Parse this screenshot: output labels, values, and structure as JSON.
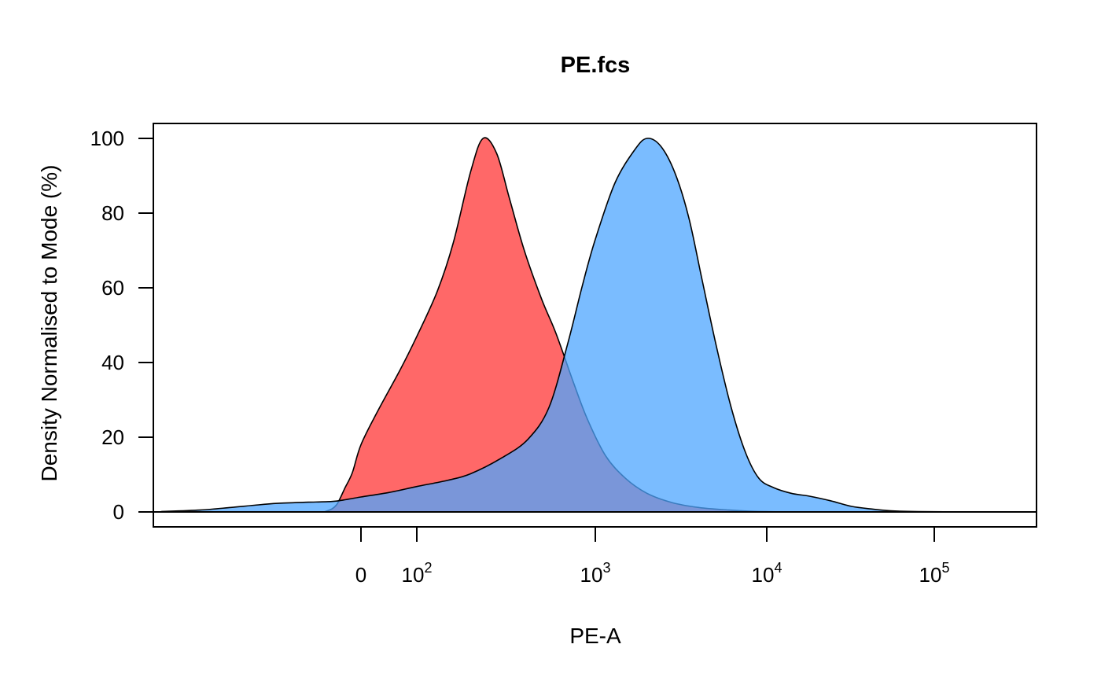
{
  "chart_data": {
    "type": "area",
    "title": "PE.fcs",
    "xlabel": "PE-A",
    "ylabel": "Density Normalised to Mode (%)",
    "x_scale": "biexponential (logicle)",
    "ylim": [
      -4.2,
      100
    ],
    "xlim": [
      -370,
      262000
    ],
    "grid": false,
    "legend": "none",
    "x_ticks": [
      {
        "value": 0,
        "base": "0",
        "exp": ""
      },
      {
        "value": 100,
        "base": "10",
        "exp": "2"
      },
      {
        "value": 1000,
        "base": "10",
        "exp": "3"
      },
      {
        "value": 10000,
        "base": "10",
        "exp": "4"
      },
      {
        "value": 100000,
        "base": "10",
        "exp": "5"
      }
    ],
    "y_ticks": [
      0,
      20,
      40,
      60,
      80,
      100
    ],
    "series": [
      {
        "color": "#FF4D4D",
        "opacity": 0.85,
        "x": [
          -160,
          -120,
          -95,
          -75,
          -55,
          -30,
          0,
          30,
          70,
          100,
          130,
          160,
          200,
          235,
          280,
          330,
          400,
          500,
          600,
          750,
          900,
          1150,
          1500,
          2000,
          2800,
          4000,
          6000,
          8000,
          12000,
          20000,
          50000
        ],
        "y": [
          0,
          0.8,
          2,
          4,
          6.5,
          10.5,
          18,
          27,
          38,
          47,
          59,
          72,
          91,
          100,
          96,
          84,
          70,
          57,
          48,
          35,
          25,
          15,
          9,
          5,
          2.5,
          1.2,
          0.5,
          0.2,
          0.05,
          0,
          0
        ]
      },
      {
        "color": "#4DA6FF",
        "opacity": 0.75,
        "x": [
          -370,
          -320,
          -280,
          -250,
          -220,
          -180,
          -120,
          -60,
          0,
          50,
          100,
          150,
          200,
          300,
          420,
          550,
          700,
          850,
          1000,
          1300,
          1700,
          2000,
          2400,
          2900,
          3500,
          4200,
          5100,
          6200,
          7500,
          9000,
          11000,
          14000,
          18000,
          24000,
          32000,
          42000,
          55000,
          80000,
          150000,
          262000
        ],
        "y": [
          0.1,
          0.5,
          1.2,
          1.8,
          2.3,
          2.6,
          2.8,
          3.2,
          4,
          5.2,
          6.8,
          8.5,
          10.2,
          14.5,
          19.5,
          28,
          45,
          61,
          73,
          88,
          97,
          100,
          98,
          91,
          79,
          62,
          44,
          28,
          16,
          9,
          6.5,
          5,
          4.2,
          3,
          1.5,
          0.8,
          0.3,
          0.1,
          0,
          0
        ]
      }
    ]
  }
}
